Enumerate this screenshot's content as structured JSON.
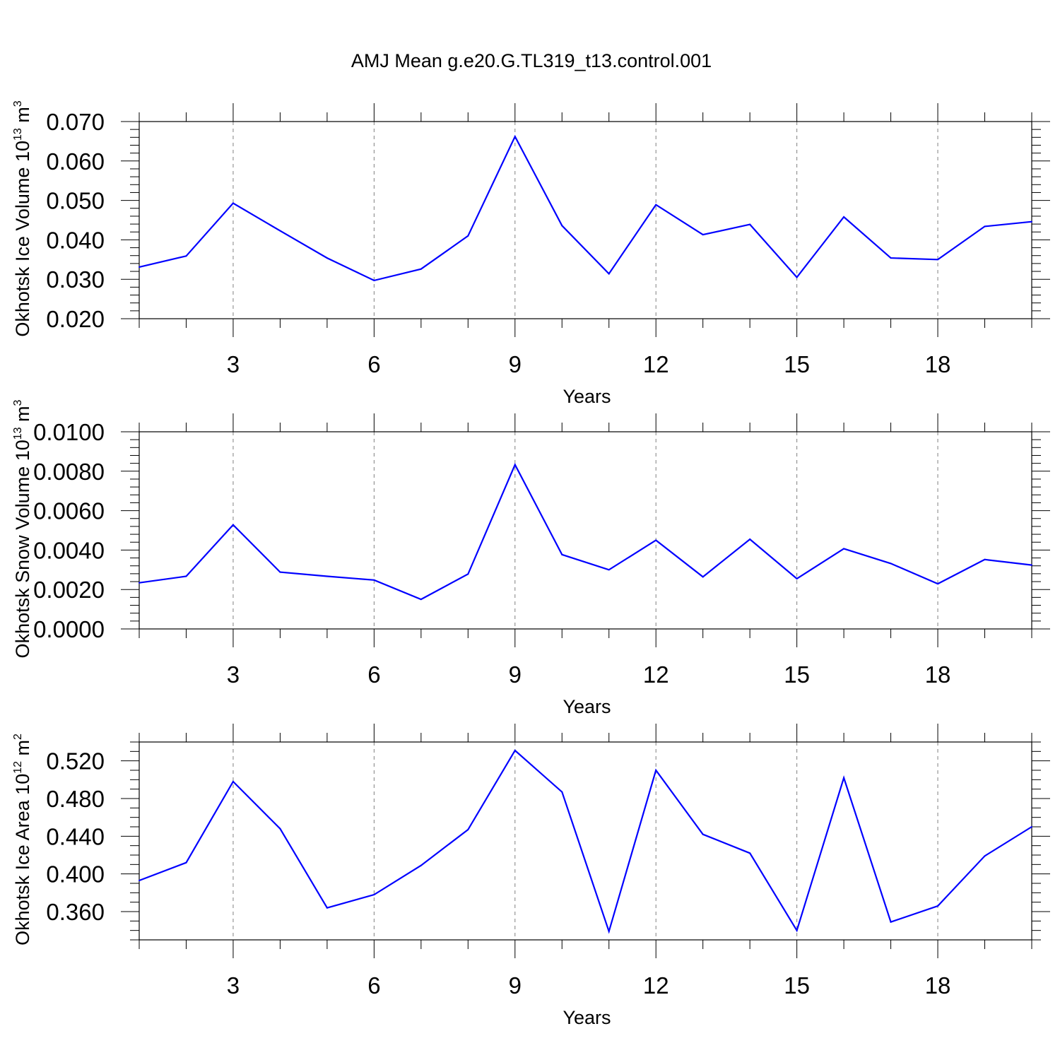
{
  "title": "AMJ Mean g.e20.G.TL319_t13.control.001",
  "colors": {
    "line": "#0000ff",
    "axis": "#000000",
    "gridline": "#808080"
  },
  "chart_data": [
    {
      "type": "line",
      "name": "ice-volume",
      "xlabel": "Years",
      "ylabel": {
        "text": "Okhotsk Ice Volume 10",
        "sup": "13",
        "unit": " m",
        "unit_sup": "3"
      },
      "xlim": [
        1,
        20
      ],
      "ylim": [
        0.02,
        0.07
      ],
      "x_ticks": [
        3,
        6,
        9,
        12,
        15,
        18
      ],
      "x_tick_labels": [
        "3",
        "6",
        "9",
        "12",
        "15",
        "18"
      ],
      "y_ticks": [
        0.02,
        0.03,
        0.04,
        0.05,
        0.06,
        0.07
      ],
      "y_tick_labels": [
        "0.020",
        "0.030",
        "0.040",
        "0.050",
        "0.060",
        "0.070"
      ],
      "y_minor_step": 0.002,
      "vertical_gridlines": [
        3,
        6,
        9,
        12,
        15,
        18
      ],
      "x": [
        1,
        2,
        3,
        4,
        5,
        6,
        7,
        8,
        9,
        10,
        11,
        12,
        13,
        14,
        15,
        16,
        17,
        18,
        19,
        20
      ],
      "values": [
        0.0331,
        0.0359,
        0.0493,
        0.0423,
        0.0354,
        0.0297,
        0.0326,
        0.041,
        0.0662,
        0.0436,
        0.0314,
        0.0489,
        0.0413,
        0.0439,
        0.0305,
        0.0458,
        0.0354,
        0.035,
        0.0434,
        0.0446
      ]
    },
    {
      "type": "line",
      "name": "snow-volume",
      "xlabel": "Years",
      "ylabel": {
        "text": "Okhotsk Snow Volume 10",
        "sup": "13",
        "unit": " m",
        "unit_sup": "3"
      },
      "xlim": [
        1,
        20
      ],
      "ylim": [
        0.0,
        0.01
      ],
      "x_ticks": [
        3,
        6,
        9,
        12,
        15,
        18
      ],
      "x_tick_labels": [
        "3",
        "6",
        "9",
        "12",
        "15",
        "18"
      ],
      "y_ticks": [
        0.0,
        0.002,
        0.004,
        0.006,
        0.008,
        0.01
      ],
      "y_tick_labels": [
        "0.0000",
        "0.0020",
        "0.0040",
        "0.0060",
        "0.0080",
        "0.0100"
      ],
      "y_minor_step": 0.0004,
      "vertical_gridlines": [
        3,
        6,
        9,
        12,
        15,
        18
      ],
      "x": [
        1,
        2,
        3,
        4,
        5,
        6,
        7,
        8,
        9,
        10,
        11,
        12,
        13,
        14,
        15,
        16,
        17,
        18,
        19,
        20
      ],
      "values": [
        0.00234,
        0.00267,
        0.00528,
        0.00288,
        0.00267,
        0.00248,
        0.0015,
        0.00278,
        0.00833,
        0.00377,
        0.003,
        0.0045,
        0.00264,
        0.00455,
        0.00255,
        0.00407,
        0.00332,
        0.00229,
        0.00352,
        0.00324
      ]
    },
    {
      "type": "line",
      "name": "ice-area",
      "xlabel": "Years",
      "ylabel": {
        "text": "Okhotsk Ice Area 10",
        "sup": "12",
        "unit": " m",
        "unit_sup": "2"
      },
      "xlim": [
        1,
        20
      ],
      "ylim": [
        0.33,
        0.54
      ],
      "x_ticks": [
        3,
        6,
        9,
        12,
        15,
        18
      ],
      "x_tick_labels": [
        "3",
        "6",
        "9",
        "12",
        "15",
        "18"
      ],
      "y_ticks": [
        0.36,
        0.4,
        0.44,
        0.48,
        0.52
      ],
      "y_tick_labels": [
        "0.360",
        "0.400",
        "0.440",
        "0.480",
        "0.520"
      ],
      "y_minor_step": 0.01,
      "vertical_gridlines": [
        3,
        6,
        9,
        12,
        15,
        18
      ],
      "x": [
        1,
        2,
        3,
        4,
        5,
        6,
        7,
        8,
        9,
        10,
        11,
        12,
        13,
        14,
        15,
        16,
        17,
        18,
        19,
        20
      ],
      "values": [
        0.393,
        0.412,
        0.498,
        0.448,
        0.364,
        0.378,
        0.409,
        0.447,
        0.531,
        0.487,
        0.339,
        0.51,
        0.442,
        0.422,
        0.34,
        0.502,
        0.349,
        0.366,
        0.419,
        0.45
      ]
    }
  ]
}
